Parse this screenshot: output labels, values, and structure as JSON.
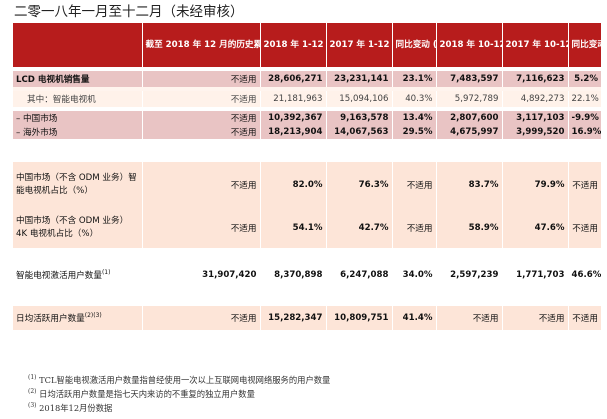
{
  "title": "二零一八年一月至十二月（未经审核）",
  "headers": {
    "cumulative": "截至 2018 年 12 月的历史累计",
    "y2018": "2018 年 1-12 月",
    "y2017": "2017 年 1-12 月",
    "yoy1": "同比变动 (%)",
    "q2018": "2018 年 10-12 月",
    "q2017": "2017 年 10-12 月",
    "yoy2": "同比变动 (%)"
  },
  "rows": {
    "lcd": {
      "label": "LCD 电视机销售量",
      "values": [
        "不适用",
        "28,606,271",
        "23,231,141",
        "23.1%",
        "7,483,597",
        "7,116,623",
        "5.2%"
      ]
    },
    "smart": {
      "label": "其中：智能电视机",
      "values": [
        "不适用",
        "21,181,963",
        "15,094,106",
        "40.3%",
        "5,972,789",
        "4,892,273",
        "22.1%"
      ]
    },
    "china": {
      "label": "–  中国市场",
      "values": [
        "不适用",
        "10,392,367",
        "9,163,578",
        "13.4%",
        "2,807,600",
        "3,117,103",
        "-9.9%"
      ]
    },
    "overseas": {
      "label": "–  海外市场",
      "values": [
        "不适用",
        "18,213,904",
        "14,067,563",
        "29.5%",
        "4,675,997",
        "3,999,520",
        "16.9%"
      ]
    },
    "smart_share": {
      "label": "中国市场（不含 ODM 业务）智能电视机占比（%）",
      "values": [
        "不适用",
        "82.0%",
        "76.3%",
        "不适用",
        "83.7%",
        "79.9%",
        "不适用"
      ]
    },
    "k4_share": {
      "label": "中国市场（不含 ODM 业务）4K 电视机占比（%）",
      "values": [
        "不适用",
        "54.1%",
        "42.7%",
        "不适用",
        "58.9%",
        "47.6%",
        "不适用"
      ]
    },
    "activated": {
      "label": "智能电视激活用户数量",
      "sup": "(1)",
      "values": [
        "31,907,420",
        "8,370,898",
        "6,247,088",
        "34.0%",
        "2,597,239",
        "1,771,703",
        "46.6%"
      ]
    },
    "daily": {
      "label": "日均活跃用户数量",
      "sup": "(2)(3)",
      "values": [
        "不适用",
        "15,282,347",
        "10,809,751",
        "41.4%",
        "不适用",
        "不适用",
        "不适用"
      ]
    }
  },
  "footnotes": [
    {
      "mark": "(1)",
      "text": "TCL智能电视激活用户数量指曾经使用一次以上互联网电视网络服务的用户数量"
    },
    {
      "mark": "(2)",
      "text": "日均活跃用户数量是指七天内来访的不重复的独立用户数量"
    },
    {
      "mark": "(3)",
      "text": "2018年12月份数据"
    }
  ]
}
